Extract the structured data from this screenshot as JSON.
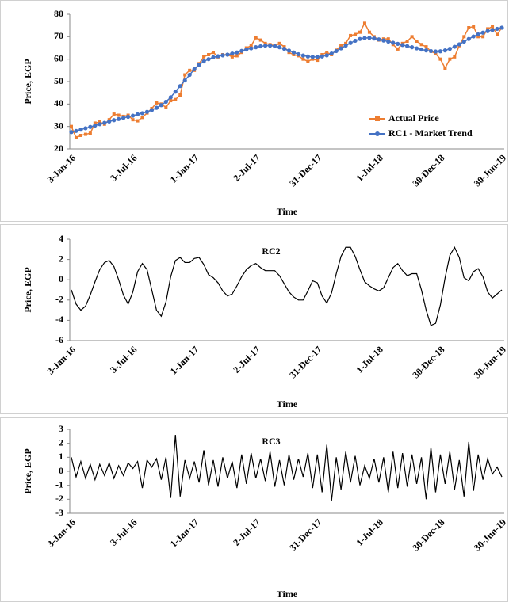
{
  "chart_data": [
    {
      "type": "line",
      "x_label": "Time",
      "y_label": "Price, EGP",
      "legend": "lower right",
      "categories": [
        "3-Jan-16",
        null,
        null,
        null,
        null,
        null,
        null,
        null,
        null,
        null,
        null,
        null,
        null,
        "3-Jul-16",
        null,
        null,
        null,
        null,
        null,
        null,
        null,
        null,
        null,
        null,
        null,
        null,
        "1-Jan-17",
        null,
        null,
        null,
        null,
        null,
        null,
        null,
        null,
        null,
        null,
        null,
        null,
        "2-Jul-17",
        null,
        null,
        null,
        null,
        null,
        null,
        null,
        null,
        null,
        null,
        null,
        null,
        "31-Dec-17",
        null,
        null,
        null,
        null,
        null,
        null,
        null,
        null,
        null,
        null,
        null,
        null,
        "1-Jul-18",
        null,
        null,
        null,
        null,
        null,
        null,
        null,
        null,
        null,
        null,
        null,
        null,
        "30-Dec-18",
        null,
        null,
        null,
        null,
        null,
        null,
        null,
        null,
        null,
        null,
        null,
        null,
        "30-Jun-19"
      ],
      "ylim": [
        20,
        80
      ],
      "yticks": [
        20,
        30,
        40,
        50,
        60,
        70,
        80
      ],
      "series": [
        {
          "name": "Actual Price",
          "color": "#ED7D31",
          "marker": "square",
          "values": [
            30,
            25,
            26,
            26.5,
            27,
            31.5,
            32,
            31,
            33,
            35.5,
            35,
            34.5,
            35,
            33,
            32.5,
            34,
            36,
            38,
            40.5,
            40,
            38.5,
            41.5,
            42,
            44,
            53,
            55,
            55,
            58,
            61,
            62,
            63,
            61,
            62,
            62,
            61,
            61.5,
            63,
            65,
            66,
            69.5,
            68.5,
            67,
            66.5,
            66,
            67,
            65.5,
            63,
            62,
            61.5,
            60,
            59,
            60,
            59.5,
            62,
            63,
            62,
            64,
            66,
            67,
            70.5,
            71,
            72,
            76,
            72,
            70,
            68.5,
            69,
            69,
            66.5,
            64.5,
            67,
            68,
            70,
            68,
            66.5,
            65.5,
            63.5,
            62.5,
            60,
            56,
            60,
            61,
            66,
            70,
            74,
            74.5,
            70,
            70,
            73.5,
            74.5,
            71,
            74
          ]
        },
        {
          "name": "RC1 - Market Trend",
          "color": "#4472C4",
          "marker": "circle",
          "values": [
            27.5,
            28,
            28.6,
            29.2,
            29.8,
            30.4,
            31,
            31.6,
            32.2,
            32.8,
            33.3,
            33.8,
            34.3,
            34.8,
            35.4,
            35.9,
            36.5,
            37.3,
            38.3,
            39.5,
            41,
            43,
            45.5,
            48,
            50.5,
            53,
            55.5,
            57.5,
            59,
            60,
            60.8,
            61.3,
            61.7,
            62,
            62.5,
            63,
            63.7,
            64.3,
            64.8,
            65.3,
            65.7,
            66,
            66,
            65.8,
            65.3,
            64.6,
            63.8,
            63,
            62.2,
            61.6,
            61.2,
            61,
            61,
            61.2,
            61.7,
            62.5,
            63.6,
            64.8,
            66,
            67.2,
            68.2,
            69,
            69.4,
            69.5,
            69.2,
            68.8,
            68.3,
            67.8,
            67.3,
            66.8,
            66.3,
            65.8,
            65.3,
            64.8,
            64.3,
            63.9,
            63.6,
            63.4,
            63.5,
            63.9,
            64.6,
            65.5,
            66.6,
            67.8,
            69,
            70.1,
            71,
            71.8,
            72.5,
            73,
            73.5,
            74
          ]
        }
      ]
    },
    {
      "type": "line",
      "title": "RC2",
      "x_label": "Time",
      "y_label": "Price, EGP",
      "categories": [
        "3-Jan-16",
        null,
        null,
        null,
        null,
        null,
        null,
        null,
        null,
        null,
        null,
        null,
        null,
        "3-Jul-16",
        null,
        null,
        null,
        null,
        null,
        null,
        null,
        null,
        null,
        null,
        null,
        null,
        "1-Jan-17",
        null,
        null,
        null,
        null,
        null,
        null,
        null,
        null,
        null,
        null,
        null,
        null,
        "2-Jul-17",
        null,
        null,
        null,
        null,
        null,
        null,
        null,
        null,
        null,
        null,
        null,
        null,
        "31-Dec-17",
        null,
        null,
        null,
        null,
        null,
        null,
        null,
        null,
        null,
        null,
        null,
        null,
        "1-Jul-18",
        null,
        null,
        null,
        null,
        null,
        null,
        null,
        null,
        null,
        null,
        null,
        null,
        "30-Dec-18",
        null,
        null,
        null,
        null,
        null,
        null,
        null,
        null,
        null,
        null,
        null,
        null,
        "30-Jun-19"
      ],
      "ylim": [
        -6,
        4
      ],
      "yticks": [
        -6,
        -4,
        -2,
        0,
        2,
        4
      ],
      "series": [
        {
          "color": "#000000",
          "values": [
            -1,
            -2.4,
            -3,
            -2.6,
            -1.5,
            -0.2,
            1,
            1.7,
            1.9,
            1.3,
            0,
            -1.5,
            -2.4,
            -1.2,
            0.8,
            1.6,
            1,
            -1,
            -3,
            -3.6,
            -2.2,
            0.3,
            1.9,
            2.2,
            1.7,
            1.7,
            2.1,
            2.2,
            1.5,
            0.5,
            0.2,
            -0.3,
            -1.1,
            -1.6,
            -1.4,
            -0.6,
            0.3,
            1,
            1.4,
            1.6,
            1.2,
            0.9,
            0.9,
            0.9,
            0.4,
            -0.4,
            -1.2,
            -1.7,
            -2,
            -2,
            -1.1,
            -0.1,
            -0.3,
            -1.6,
            -2.3,
            -1.3,
            0.6,
            2.3,
            3.2,
            3.2,
            2.3,
            1,
            -0.2,
            -0.6,
            -0.9,
            -1.1,
            -0.8,
            0.2,
            1.2,
            1.6,
            0.9,
            0.4,
            0.6,
            0.6,
            -1,
            -3,
            -4.5,
            -4.3,
            -2.5,
            0.2,
            2.4,
            3.2,
            2.2,
            0.2,
            -0.1,
            0.8,
            1.1,
            0.3,
            -1.2,
            -1.8,
            -1.4,
            -1
          ]
        }
      ]
    },
    {
      "type": "line",
      "title": "RC3",
      "x_label": "Time",
      "y_label": "Price, EGP",
      "categories": [
        "3-Jan-16",
        null,
        null,
        null,
        null,
        null,
        null,
        null,
        null,
        null,
        null,
        null,
        null,
        "3-Jul-16",
        null,
        null,
        null,
        null,
        null,
        null,
        null,
        null,
        null,
        null,
        null,
        null,
        "1-Jan-17",
        null,
        null,
        null,
        null,
        null,
        null,
        null,
        null,
        null,
        null,
        null,
        null,
        "2-Jul-17",
        null,
        null,
        null,
        null,
        null,
        null,
        null,
        null,
        null,
        null,
        null,
        null,
        "31-Dec-17",
        null,
        null,
        null,
        null,
        null,
        null,
        null,
        null,
        null,
        null,
        null,
        null,
        "1-Jul-18",
        null,
        null,
        null,
        null,
        null,
        null,
        null,
        null,
        null,
        null,
        null,
        null,
        "30-Dec-18",
        null,
        null,
        null,
        null,
        null,
        null,
        null,
        null,
        null,
        null,
        null,
        null,
        "30-Jun-19"
      ],
      "ylim": [
        -3,
        3
      ],
      "yticks": [
        -3,
        -2,
        -1,
        0,
        1,
        2,
        3
      ],
      "series": [
        {
          "color": "#000000",
          "values": [
            1,
            -0.4,
            0.7,
            -0.5,
            0.5,
            -0.6,
            0.5,
            -0.3,
            0.6,
            -0.5,
            0.4,
            -0.3,
            0.6,
            0.2,
            0.7,
            -1.2,
            0.8,
            0.3,
            0.9,
            -0.6,
            1,
            -1.9,
            2.6,
            -1.8,
            0.8,
            -0.5,
            0.7,
            -0.8,
            1.5,
            -1,
            0.8,
            -1.1,
            1,
            -0.5,
            0.7,
            -1.2,
            1.2,
            -0.9,
            1.3,
            -0.5,
            0.9,
            -0.7,
            1.4,
            -1.1,
            0.8,
            -1,
            1.2,
            -0.6,
            0.9,
            -0.4,
            1.3,
            -1.2,
            1.2,
            -1.5,
            1.9,
            -2.1,
            1,
            -1.3,
            1.4,
            -0.8,
            1.1,
            -1,
            0.4,
            -0.5,
            0.9,
            -0.8,
            1,
            -1.5,
            1.4,
            -1.2,
            1.3,
            -1.1,
            1.2,
            -0.9,
            1,
            -2,
            1.7,
            -1.5,
            1.2,
            -0.9,
            1.4,
            -1.3,
            0.8,
            -1.8,
            2.1,
            -1.4,
            1.2,
            -0.6,
            0.9,
            -0.2,
            0.3,
            -0.4
          ]
        }
      ]
    }
  ]
}
